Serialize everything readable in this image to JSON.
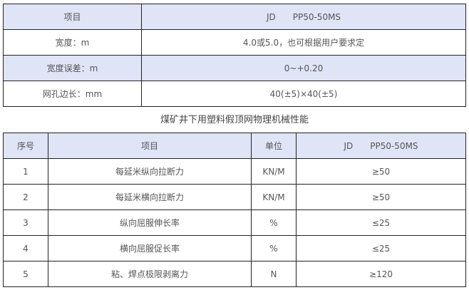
{
  "spec_table": {
    "rows": [
      {
        "label": "项目",
        "value": "JD　　PP50-50MS"
      },
      {
        "label": "宽度：m",
        "value": "4.0或5.0，也可根据用户要求定"
      },
      {
        "label": "宽度误差：m",
        "value": "0~+0.20"
      },
      {
        "label": "网孔边长：mm",
        "value": "40(±5)×40(±5)"
      }
    ]
  },
  "title": "煤矿井下用塑料假顶网物理机械性能",
  "property_table": {
    "headers": [
      "序号",
      "项目",
      "单位",
      "JD　　PP50-50MS"
    ],
    "rows": [
      [
        "1",
        "每延米纵向拉断力",
        "KN/M",
        "≥50"
      ],
      [
        "2",
        "每延米横向拉断力",
        "KN/M",
        "≥50"
      ],
      [
        "3",
        "纵向屈服伸长率",
        "%",
        "≤25"
      ],
      [
        "4",
        "横向屈服促长率",
        "%",
        "≤25"
      ],
      [
        "5",
        "粘、焊点极限剥离力",
        "N",
        "≥120"
      ]
    ]
  },
  "colors": {
    "header_bg": "#dfe4f7",
    "border": "#222222"
  }
}
